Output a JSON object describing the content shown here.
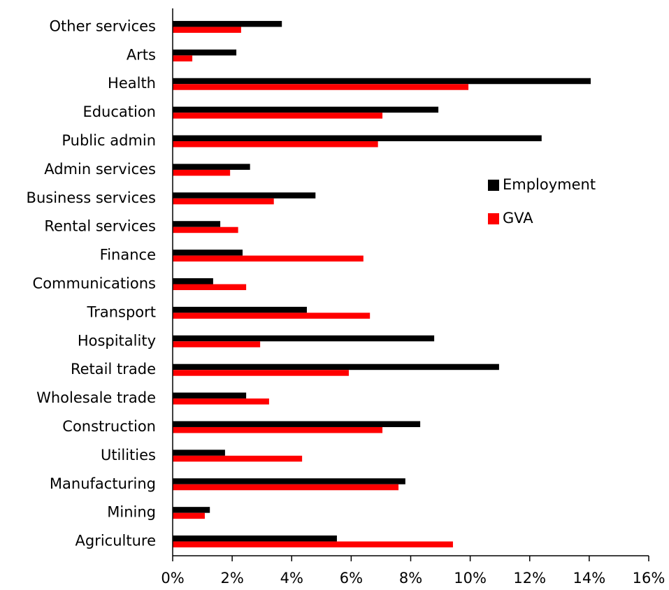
{
  "chart_data": {
    "type": "bar",
    "orientation": "horizontal",
    "categories": [
      "Other services",
      "Arts",
      "Health",
      "Education",
      "Public admin",
      "Admin services",
      "Business services",
      "Rental services",
      "Finance",
      "Communications",
      "Transport",
      "Hospitality",
      "Retail trade",
      "Wholesale trade",
      "Construction",
      "Utilities",
      "Manufacturing",
      "Mining",
      "Agriculture"
    ],
    "series": [
      {
        "name": "Employment",
        "color": "#000000",
        "values": [
          3.67,
          2.14,
          14.05,
          8.93,
          12.4,
          2.6,
          4.8,
          1.6,
          2.35,
          1.36,
          4.51,
          8.79,
          10.97,
          2.47,
          8.32,
          1.76,
          7.82,
          1.25,
          5.52
        ]
      },
      {
        "name": "GVA",
        "color": "#ff0000",
        "values": [
          2.3,
          0.66,
          9.94,
          7.05,
          6.9,
          1.93,
          3.4,
          2.2,
          6.41,
          2.47,
          6.63,
          2.94,
          5.92,
          3.24,
          7.05,
          4.35,
          7.59,
          1.08,
          9.42
        ]
      }
    ],
    "xlim": [
      0,
      16
    ],
    "xticks": [
      {
        "value": 0,
        "label": "0%"
      },
      {
        "value": 2,
        "label": "2%"
      },
      {
        "value": 4,
        "label": "4%"
      },
      {
        "value": 6,
        "label": "6%"
      },
      {
        "value": 8,
        "label": "8%"
      },
      {
        "value": 10,
        "label": "10%"
      },
      {
        "value": 12,
        "label": "12%"
      },
      {
        "value": 14,
        "label": "14%"
      },
      {
        "value": 16,
        "label": "16%"
      }
    ],
    "grid": false,
    "legend": "right"
  }
}
